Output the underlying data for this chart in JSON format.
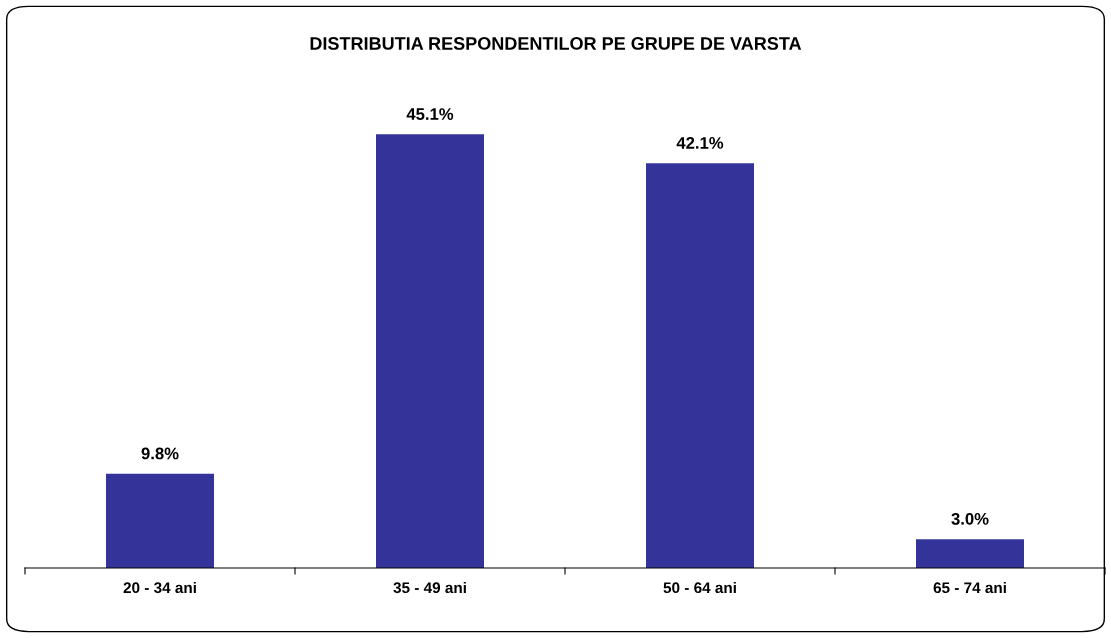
{
  "chart_data": {
    "type": "bar",
    "title": "DISTRIBUTIA RESPONDENTILOR PE GRUPE DE VARSTA",
    "categories": [
      "20 - 34 ani",
      "35 - 49 ani",
      "50 - 64 ani",
      "65 - 74 ani"
    ],
    "values": [
      9.8,
      45.1,
      42.1,
      3.0
    ],
    "color": "#333399",
    "value_labels": [
      "9.8%",
      "45.1%",
      "42.1%",
      "3.0%"
    ],
    "grid": false,
    "legend": false
  }
}
